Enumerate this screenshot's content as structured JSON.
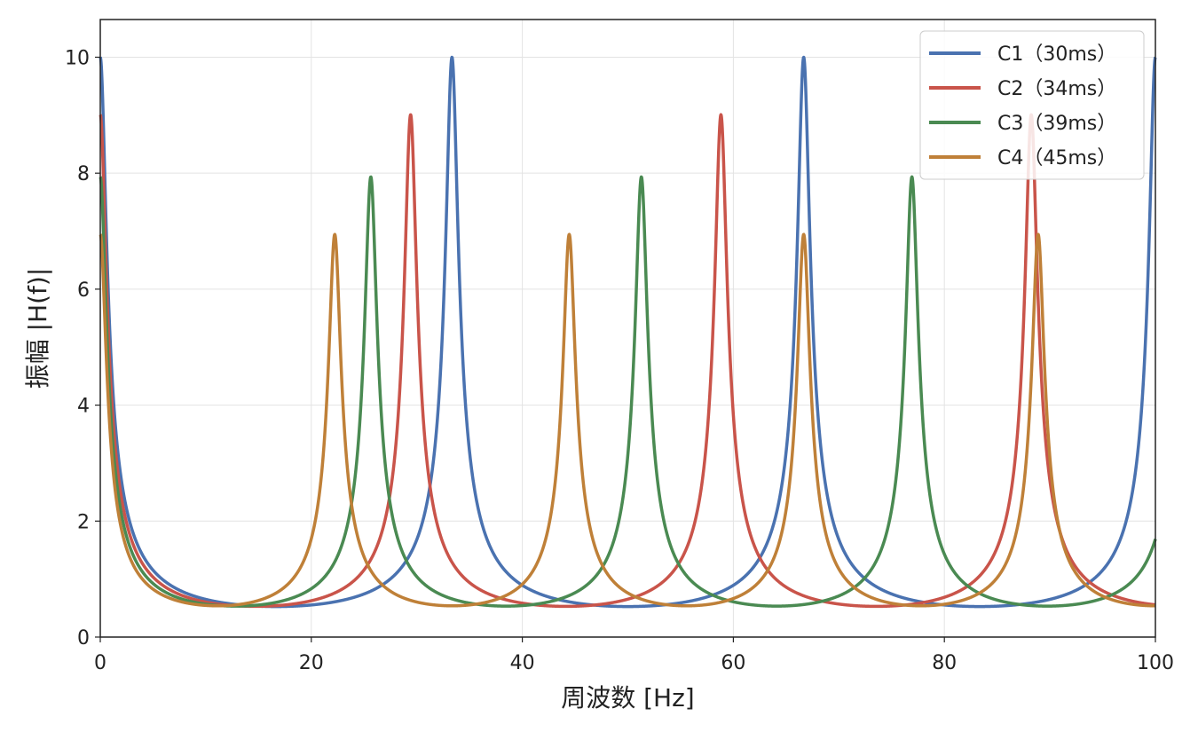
{
  "chart_data": {
    "type": "line",
    "title": "",
    "xlabel": "周波数 [Hz]",
    "ylabel": "振幅 |H(f)|",
    "xlim": [
      0,
      100
    ],
    "ylim": [
      0,
      10.65
    ],
    "xticks": [
      0,
      20,
      40,
      60,
      80,
      100
    ],
    "yticks": [
      0,
      2,
      4,
      6,
      8,
      10
    ],
    "grid": true,
    "legend_position": "top-right",
    "series": [
      {
        "name": "C1（30ms）",
        "delay_ms": 30,
        "gain": 0.9,
        "color": "#4a72b0"
      },
      {
        "name": "C2（34ms）",
        "delay_ms": 34,
        "gain": 0.889,
        "color": "#c9544a"
      },
      {
        "name": "C3（39ms）",
        "delay_ms": 39,
        "gain": 0.874,
        "color": "#4a8a52"
      },
      {
        "name": "C4（45ms）",
        "delay_ms": 45,
        "gain": 0.856,
        "color": "#bf8038"
      }
    ]
  }
}
